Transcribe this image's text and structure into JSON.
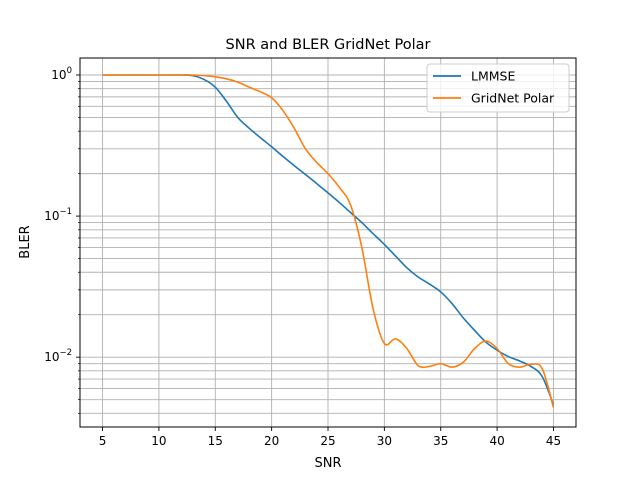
{
  "chart_data": {
    "type": "line",
    "title": "SNR and BLER GridNet Polar",
    "xlabel": "SNR",
    "ylabel": "BLER",
    "xlim": [
      3.0,
      47.0
    ],
    "ylim": [
      0.0032,
      1.32
    ],
    "yscale": "log",
    "grid": true,
    "legend_position": "top-right",
    "x_ticks": [
      5,
      10,
      15,
      20,
      25,
      30,
      35,
      40,
      45
    ],
    "y_major_ticks": [
      0.01,
      0.1,
      1
    ],
    "y_tick_labels": [
      {
        "base": "10",
        "exp": "−2"
      },
      {
        "base": "10",
        "exp": "−1"
      },
      {
        "base": "10",
        "exp": "0"
      }
    ],
    "series": [
      {
        "name": "LMMSE",
        "color": "#1f77b4",
        "x": [
          5,
          6,
          7,
          8,
          9,
          10,
          11,
          12,
          13,
          14,
          15,
          16,
          17,
          18,
          19,
          20,
          21,
          22,
          23,
          24,
          25,
          26,
          27,
          28,
          29,
          30,
          31,
          32,
          33,
          34,
          35,
          36,
          37,
          38,
          39,
          40,
          41,
          42,
          43,
          44,
          45
        ],
        "y": [
          1.0,
          1.0,
          1.0,
          1.0,
          1.0,
          1.0,
          1.0,
          1.0,
          0.99,
          0.93,
          0.82,
          0.65,
          0.5,
          0.42,
          0.36,
          0.31,
          0.265,
          0.228,
          0.197,
          0.17,
          0.146,
          0.125,
          0.106,
          0.09,
          0.075,
          0.063,
          0.052,
          0.043,
          0.037,
          0.033,
          0.029,
          0.024,
          0.019,
          0.0155,
          0.0128,
          0.0112,
          0.0101,
          0.0094,
          0.0086,
          0.0073,
          0.0046
        ]
      },
      {
        "name": "GridNet Polar",
        "color": "#ff7f0e",
        "x": [
          5,
          6,
          7,
          8,
          9,
          10,
          11,
          12,
          13,
          14,
          15,
          16,
          17,
          18,
          19,
          20,
          21,
          22,
          23,
          24,
          25,
          26,
          27,
          28,
          29,
          30,
          31,
          32,
          33,
          34,
          35,
          36,
          37,
          38,
          39,
          40,
          41,
          42,
          43,
          44,
          45
        ],
        "y": [
          1.0,
          1.0,
          1.0,
          1.0,
          1.0,
          1.0,
          1.0,
          1.0,
          1.0,
          0.99,
          0.97,
          0.94,
          0.89,
          0.82,
          0.76,
          0.69,
          0.56,
          0.42,
          0.3,
          0.24,
          0.2,
          0.16,
          0.12,
          0.06,
          0.022,
          0.0125,
          0.0135,
          0.0115,
          0.0087,
          0.0086,
          0.009,
          0.0085,
          0.0092,
          0.0115,
          0.013,
          0.0115,
          0.009,
          0.0085,
          0.0089,
          0.0083,
          0.0044
        ]
      }
    ]
  }
}
